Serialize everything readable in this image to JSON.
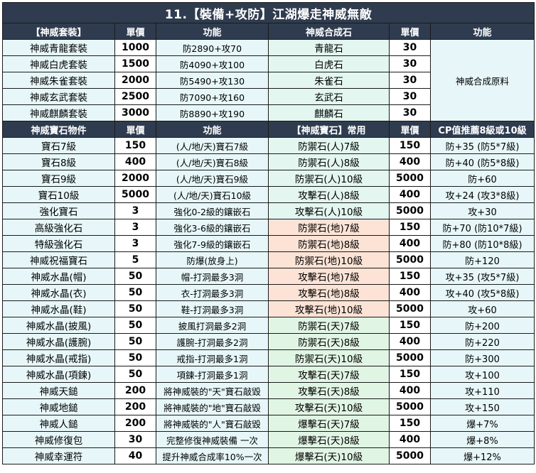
{
  "title": "11.【裝備+攻防】江湖爆走神威無敵",
  "set_header": [
    "【神威套裝】",
    "單價",
    "功能",
    "神威合成石",
    "單價",
    "功能"
  ],
  "set_rows": [
    {
      "name": "神威青龍套裝",
      "price": "1000",
      "func": "防2890+攻70",
      "stone": "青龍石",
      "stone_price": "30"
    },
    {
      "name": "神威白虎套裝",
      "price": "1500",
      "func": "防4090+攻100",
      "stone": "白虎石",
      "stone_price": "30"
    },
    {
      "name": "神威朱雀套裝",
      "price": "2000",
      "func": "防5490+攻130",
      "stone": "朱雀石",
      "stone_price": "30"
    },
    {
      "name": "神威玄武套裝",
      "price": "2500",
      "func": "防7090+攻160",
      "stone": "玄武石",
      "stone_price": "30"
    },
    {
      "name": "神威麒麟套裝",
      "price": "3000",
      "func": "防8890+攻190",
      "stone": "麒麟石",
      "stone_price": "30"
    }
  ],
  "stone_note": "神威合成原料",
  "gem_header": [
    "神威寶石物件",
    "單價",
    "功能",
    "【神威寶石】常用",
    "單價",
    "CP值推薦8級或10級"
  ],
  "gem_rows": [
    {
      "name": "寶石7級",
      "price": "150",
      "func": "(人/地/天)寶石7級",
      "gem": "防禦石(人)7級",
      "gem_price": "150",
      "rec": "防+35 (防5*7級)",
      "tone": "mid"
    },
    {
      "name": "寶石8級",
      "price": "400",
      "func": "(人/地/天)寶石8級",
      "gem": "防禦石(人)8級",
      "gem_price": "400",
      "rec": "防+40 (防5*8級)",
      "tone": "mid"
    },
    {
      "name": "寶石9級",
      "price": "2000",
      "func": "(人/地/天)寶石9級",
      "gem": "防禦石(人)10級",
      "gem_price": "5000",
      "rec": "防+60",
      "tone": "mid"
    },
    {
      "name": "寶石10級",
      "price": "5000",
      "func": "(人/地/天)寶石10級",
      "gem": "攻擊石(人)8級",
      "gem_price": "400",
      "rec": "攻+24 (攻3*8級)",
      "tone": "mid"
    },
    {
      "name": "強化寶石",
      "price": "3",
      "func": "強化0-2級的鑲嵌石",
      "gem": "攻擊石(人)10級",
      "gem_price": "5000",
      "rec": "攻+30",
      "tone": "mid"
    },
    {
      "name": "高級強化石",
      "price": "3",
      "func": "強化3-6級的鑲嵌石",
      "gem": "防禦石(地)7級",
      "gem_price": "150",
      "rec": "防+70 (防10*7級)",
      "tone": "pink"
    },
    {
      "name": "特級強化石",
      "price": "3",
      "func": "強化7-9級的鑲嵌石",
      "gem": "防禦石(地)8級",
      "gem_price": "400",
      "rec": "防+80 (防10*8級)",
      "tone": "pink"
    },
    {
      "name": "神威祝福寶石",
      "price": "5",
      "func": "防爆(放身上)",
      "gem": "防禦石(地)10級",
      "gem_price": "5000",
      "rec": "防+120",
      "tone": "pink"
    },
    {
      "name": "神威水晶(帽)",
      "price": "50",
      "func": "帽-打洞最多3洞",
      "gem": "攻擊石(地)7級",
      "gem_price": "150",
      "rec": "攻+35 (攻5*7級)",
      "tone": "pink"
    },
    {
      "name": "神威水晶(衣)",
      "price": "50",
      "func": "衣-打洞最多3洞",
      "gem": "攻擊石(地)8級",
      "gem_price": "400",
      "rec": "攻+40 (攻5*8級)",
      "tone": "pink"
    },
    {
      "name": "神威水晶(鞋)",
      "price": "50",
      "func": "鞋-打洞最多3洞",
      "gem": "攻擊石(地)10級",
      "gem_price": "5000",
      "rec": "攻+60",
      "tone": "pink"
    },
    {
      "name": "神威水晶(披風)",
      "price": "50",
      "func": "披風打洞最多2洞",
      "gem": "防禦石(天)7級",
      "gem_price": "150",
      "rec": "防+200",
      "tone": "green"
    },
    {
      "name": "神威水晶(護腕)",
      "price": "50",
      "func": "護腕-打洞最多2洞",
      "gem": "防禦石(天)8級",
      "gem_price": "400",
      "rec": "防+220",
      "tone": "green"
    },
    {
      "name": "神威水晶(戒指)",
      "price": "50",
      "func": "戒指-打洞最多1洞",
      "gem": "防禦石(天)10級",
      "gem_price": "5000",
      "rec": "防+300",
      "tone": "green"
    },
    {
      "name": "神威水晶(項鍊)",
      "price": "50",
      "func": "項鍊-打洞最多1洞",
      "gem": "攻擊石(天)7級",
      "gem_price": "150",
      "rec": "攻+100",
      "tone": "green"
    },
    {
      "name": "神威天鎚",
      "price": "200",
      "func": "將神威裝的\"天\"寶石敲毀",
      "gem": "攻擊石(天)8級",
      "gem_price": "400",
      "rec": "攻+110",
      "tone": "green"
    },
    {
      "name": "神威地鎚",
      "price": "200",
      "func": "將神威裝的\"地\"寶石敲毀",
      "gem": "攻擊石(天)10級",
      "gem_price": "5000",
      "rec": "攻+150",
      "tone": "green"
    },
    {
      "name": "神威人鎚",
      "price": "200",
      "func": "將神威裝的\"人\"寶石敲毀",
      "gem": "爆擊石(天)7級",
      "gem_price": "150",
      "rec": "爆+7%",
      "tone": "green"
    },
    {
      "name": "神威修復包",
      "price": "30",
      "func": "完整修復神威裝備 一次",
      "gem": "爆擊石(天)8級",
      "gem_price": "400",
      "rec": "爆+8%",
      "tone": "green"
    },
    {
      "name": "神威幸運符",
      "price": "40",
      "func": "提升神威合成率10%一次",
      "gem": "爆擊石(天)10級",
      "gem_price": "5000",
      "rec": "爆+12%",
      "tone": "green"
    }
  ]
}
